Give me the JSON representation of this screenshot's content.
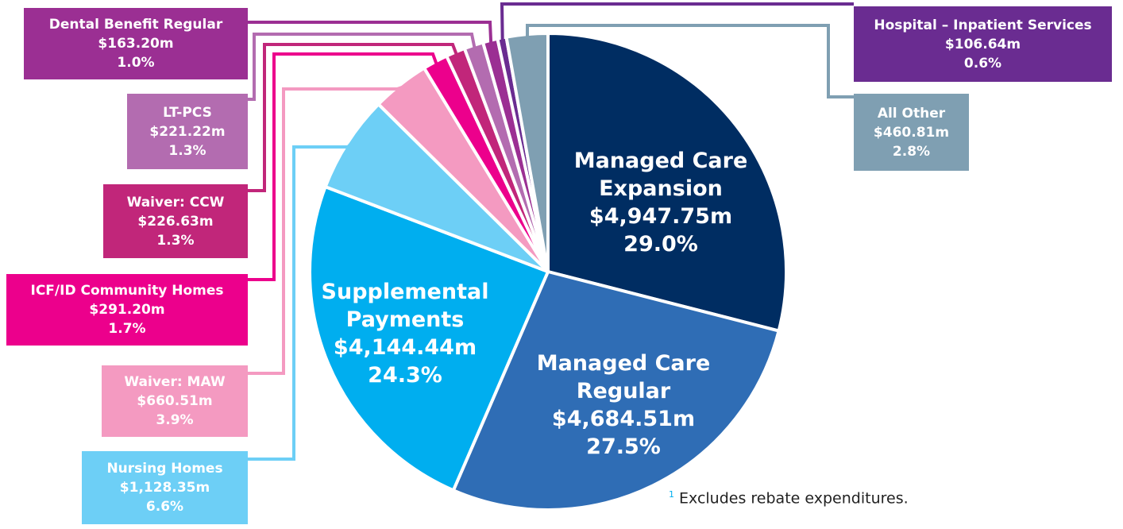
{
  "chart_data": {
    "type": "pie",
    "categories": [
      "Managed Care Expansion",
      "Managed Care Regular",
      "Supplemental Payments",
      "Nursing Homes",
      "Waiver: MAW",
      "ICF/ID Community Homes",
      "Waiver: CCW",
      "LT-PCS",
      "Dental Benefit Regular",
      "Hospital – Inpatient Services",
      "All Other"
    ],
    "values": [
      29.0,
      27.5,
      24.3,
      6.6,
      3.9,
      1.7,
      1.3,
      1.3,
      1.0,
      0.6,
      2.8
    ],
    "value_labels": [
      "29.0%",
      "27.5%",
      "24.3%",
      "6.6%",
      "3.9%",
      "1.7%",
      "1.3%",
      "1.3%",
      "1.0%",
      "0.6%",
      "2.8%"
    ],
    "amounts": [
      4947.75,
      4684.51,
      4144.44,
      1128.35,
      660.51,
      291.2,
      226.63,
      221.22,
      163.2,
      106.64,
      460.81
    ],
    "amount_labels": [
      "$4,947.75m",
      "$4,684.51m",
      "$4,144.44m",
      "$1,128.35m",
      "$660.51m",
      "$291.20m",
      "$226.63m",
      "$221.22m",
      "$163.20m",
      "$106.64m",
      "$460.81m"
    ],
    "colors": [
      "#002d62",
      "#2f6db5",
      "#00aeef",
      "#6dcff6",
      "#f49ac1",
      "#ec008c",
      "#c1267a",
      "#b36cb0",
      "#9b2f93",
      "#6a2c91",
      "#7f9fb2"
    ],
    "footnote": {
      "marker": "1",
      "text": "Excludes rebate expenditures."
    }
  }
}
